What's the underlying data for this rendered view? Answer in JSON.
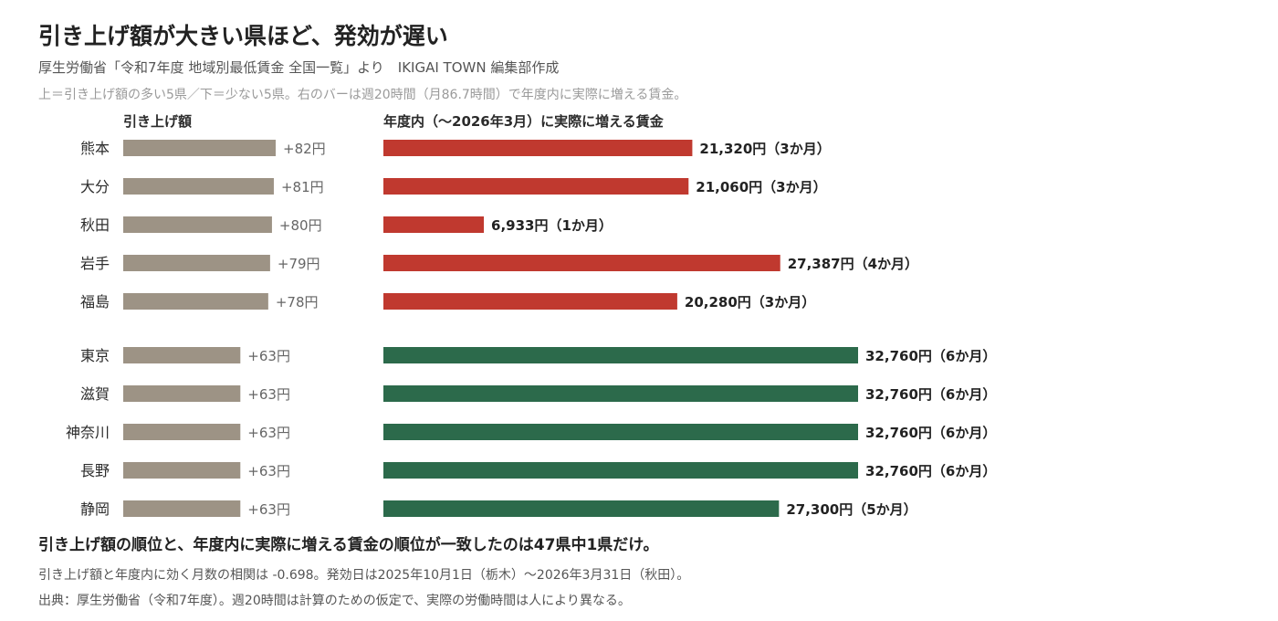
{
  "title": "引き上げ額が大きい県ほど、発効が遅い",
  "subtitle": "厚生労働省「令和7年度 地域別最低賃金 全国一覧」より　IKIGAI TOWN 編集部作成",
  "note": "上＝引き上げ額の多い5県／下＝少ない5県。右のバーは週20時間（月86.7時間）で年度内に実際に増える賃金。",
  "conclusion": "引き上げ額の順位と、年度内に実際に増える賃金の順位が一致したのは47県中1県だけ。",
  "footnote1": "引き上げ額と年度内に効く月数の相関は -0.698。発効日は2025年10月1日（栃木）〜2026年3月31日（秋田）。",
  "footnote2": "出典：厚生労働省（令和7年度）。週20時間は計算のための仮定で、実際の労働時間は人により異なる。",
  "chart_data": {
    "type": "bar",
    "columns": {
      "increase": "引き上げ額",
      "wage": "年度内（〜2026年3月）に実際に増える賃金"
    },
    "colors": {
      "increase": "#9d9385",
      "top": "#c0392f",
      "bottom": "#2c6a4b"
    },
    "increase_max": 82,
    "wage_max": 32760,
    "groups": [
      {
        "name": "top",
        "rows": [
          {
            "prefecture": "熊本",
            "increase": 82,
            "increase_label": "+82円",
            "wage": 21320,
            "wage_label": "21,320円（3か月）"
          },
          {
            "prefecture": "大分",
            "increase": 81,
            "increase_label": "+81円",
            "wage": 21060,
            "wage_label": "21,060円（3か月）"
          },
          {
            "prefecture": "秋田",
            "increase": 80,
            "increase_label": "+80円",
            "wage": 6933,
            "wage_label": "6,933円（1か月）"
          },
          {
            "prefecture": "岩手",
            "increase": 79,
            "increase_label": "+79円",
            "wage": 27387,
            "wage_label": "27,387円（4か月）"
          },
          {
            "prefecture": "福島",
            "increase": 78,
            "increase_label": "+78円",
            "wage": 20280,
            "wage_label": "20,280円（3か月）"
          }
        ]
      },
      {
        "name": "bottom",
        "rows": [
          {
            "prefecture": "東京",
            "increase": 63,
            "increase_label": "+63円",
            "wage": 32760,
            "wage_label": "32,760円（6か月）"
          },
          {
            "prefecture": "滋賀",
            "increase": 63,
            "increase_label": "+63円",
            "wage": 32760,
            "wage_label": "32,760円（6か月）"
          },
          {
            "prefecture": "神奈川",
            "increase": 63,
            "increase_label": "+63円",
            "wage": 32760,
            "wage_label": "32,760円（6か月）"
          },
          {
            "prefecture": "長野",
            "increase": 63,
            "increase_label": "+63円",
            "wage": 32760,
            "wage_label": "32,760円（6か月）"
          },
          {
            "prefecture": "静岡",
            "increase": 63,
            "increase_label": "+63円",
            "wage": 27300,
            "wage_label": "27,300円（5か月）"
          }
        ]
      }
    ]
  }
}
